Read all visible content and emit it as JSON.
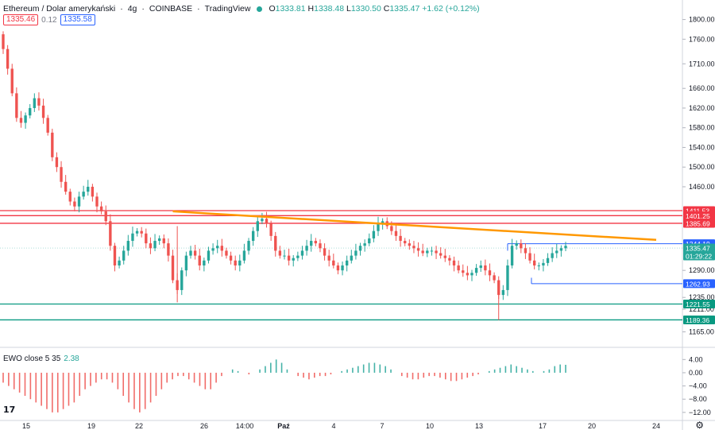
{
  "header": {
    "symbol": "Ethereum / Dolar amerykański",
    "interval": "4g",
    "exchange": "COINBASE",
    "provider": "TradingView",
    "o_label": "O",
    "o": "1333.81",
    "h_label": "H",
    "h": "1338.48",
    "l_label": "L",
    "l": "1330.50",
    "c_label": "C",
    "c": "1335.47",
    "change": "+1.62 (+0.12%)"
  },
  "trade": {
    "sell": "1335.46",
    "spread": "0.12",
    "buy": "1335.58"
  },
  "indicator": {
    "name": "EWO close 5 35",
    "value": "2.38"
  },
  "price_axis": {
    "ticks": [
      "1800.00",
      "1760.00",
      "1710.00",
      "1660.00",
      "1620.00",
      "1580.00",
      "1540.00",
      "1500.00",
      "1460.00",
      "1290.00",
      "1235.00",
      "1211.00",
      "1165.00"
    ],
    "labels": [
      {
        "value": "1411.53",
        "color": "#f23645"
      },
      {
        "value": "1401.25",
        "color": "#f23645"
      },
      {
        "value": "1385.69",
        "color": "#f23645"
      },
      {
        "value": "1344.19",
        "color": "#2962ff"
      },
      {
        "value": "1335.47",
        "color": "#26a69a"
      },
      {
        "value": "01:29:22",
        "color": "#26a69a"
      },
      {
        "value": "1262.93",
        "color": "#2962ff"
      },
      {
        "value": "1221.55",
        "color": "#089981"
      },
      {
        "value": "1189.36",
        "color": "#089981"
      }
    ]
  },
  "ind_axis": {
    "ticks": [
      "4.00",
      "0.00",
      "−4.00",
      "−8.00",
      "−12.00"
    ]
  },
  "time_axis": {
    "ticks": [
      "15",
      "19",
      "22",
      "26",
      "14:00",
      "Paź",
      "4",
      "7",
      "10",
      "13",
      "17",
      "20",
      "24"
    ]
  },
  "colors": {
    "up": "#26a69a",
    "down": "#ef5350",
    "resistance": "#f23645",
    "support": "#089981",
    "trendline": "#ff9800",
    "range": "#2962ff"
  },
  "icons": {
    "logo": "tradingview-logo-icon",
    "settings": "gear-icon",
    "status": "market-open-dot-icon"
  },
  "chart_data": {
    "type": "candlestick",
    "title": "Ethereum / Dolar amerykański",
    "y_range": [
      1140,
      1830
    ],
    "levels": {
      "resistance": [
        1411.53,
        1401.25,
        1385.69
      ],
      "support": [
        1221.55,
        1189.36
      ],
      "range_top": 1344.19,
      "range_bottom": 1262.93
    },
    "trendline": {
      "from_price": 1410,
      "to_price": 1352
    },
    "close": [
      1740,
      1700,
      1650,
      1600,
      1590,
      1605,
      1620,
      1640,
      1625,
      1600,
      1570,
      1520,
      1500,
      1470,
      1450,
      1430,
      1420,
      1440,
      1450,
      1460,
      1440,
      1420,
      1410,
      1390,
      1340,
      1300,
      1310,
      1330,
      1350,
      1365,
      1370,
      1365,
      1345,
      1335,
      1350,
      1355,
      1345,
      1320,
      1270,
      1250,
      1290,
      1320,
      1330,
      1320,
      1300,
      1310,
      1330,
      1335,
      1340,
      1330,
      1320,
      1310,
      1300,
      1310,
      1330,
      1350,
      1370,
      1390,
      1395,
      1385,
      1360,
      1330,
      1320,
      1320,
      1310,
      1315,
      1320,
      1330,
      1340,
      1350,
      1345,
      1335,
      1320,
      1310,
      1300,
      1290,
      1300,
      1310,
      1320,
      1330,
      1340,
      1345,
      1355,
      1370,
      1385,
      1390,
      1380,
      1370,
      1360,
      1350,
      1345,
      1340,
      1335,
      1330,
      1325,
      1330,
      1330,
      1325,
      1320,
      1315,
      1310,
      1300,
      1290,
      1285,
      1280,
      1285,
      1295,
      1300,
      1290,
      1280,
      1270,
      1240,
      1250,
      1300,
      1340,
      1345,
      1335,
      1325,
      1310,
      1300,
      1300,
      1305,
      1315,
      1325,
      1330,
      1335,
      1340
    ],
    "ewo": [
      -3,
      -4,
      -5,
      -6,
      -7,
      -8,
      -9,
      -10,
      -11,
      -12,
      -12,
      -11,
      -10,
      -9,
      -7,
      -5,
      -4,
      -3,
      -2,
      -2,
      -3,
      -5,
      -7,
      -9,
      -11,
      -12,
      -11,
      -9,
      -7,
      -5,
      -3,
      -2,
      -1,
      -1,
      -2,
      -3,
      -4,
      -5,
      -5,
      -3,
      -1,
      0,
      1,
      0.5,
      0,
      -0.5,
      0,
      1,
      2,
      3,
      4,
      3,
      1,
      0,
      -1,
      -1.5,
      -2,
      -1.5,
      -1,
      -1,
      -0.5,
      0,
      0.5,
      1,
      1.5,
      2,
      2.5,
      3,
      3,
      2.5,
      2,
      1,
      0,
      -1,
      -1.5,
      -2,
      -2,
      -1.5,
      -1,
      -1,
      -1.5,
      -2,
      -2.5,
      -2.5,
      -2,
      -1.5,
      -1,
      -0.5,
      0,
      0.5,
      1,
      1.5,
      2,
      2.5,
      2,
      1.5,
      1,
      0.5,
      0,
      0.5,
      1,
      2,
      2.5,
      2.4
    ]
  }
}
